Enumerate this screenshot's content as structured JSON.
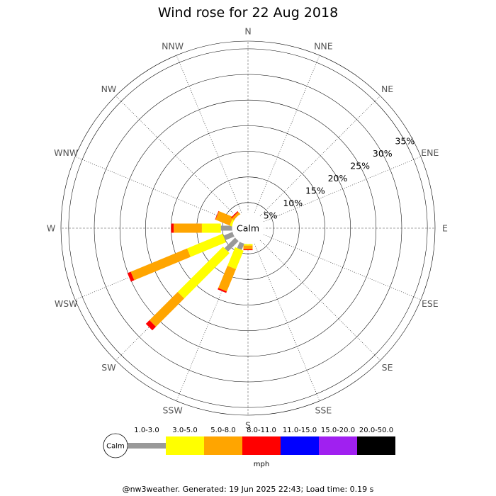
{
  "chart_data": {
    "type": "wind-rose",
    "title": "Wind rose for 22 Aug 2018",
    "directions": [
      "N",
      "NNE",
      "NE",
      "ENE",
      "E",
      "ESE",
      "SE",
      "SSE",
      "S",
      "SSW",
      "SW",
      "WSW",
      "W",
      "WNW",
      "NW",
      "NNW"
    ],
    "radial_axis": {
      "unit": "%",
      "ticks": [
        5,
        10,
        15,
        20,
        25,
        30,
        35
      ],
      "tick_labels": [
        "5%",
        "10%",
        "15%",
        "20%",
        "25%",
        "30%",
        "35%"
      ],
      "max": 36.5,
      "calm_radius_pct": 2.0
    },
    "calm_label": "Calm",
    "speed_bins": [
      {
        "label": "1.0-3.0",
        "color": "#999999"
      },
      {
        "label": "3.0-5.0",
        "color": "#ffff00"
      },
      {
        "label": "5.0-8.0",
        "color": "#ffa500"
      },
      {
        "label": "8.0-11.0",
        "color": "#ff0000"
      },
      {
        "label": "11.0-15.0",
        "color": "#0000ff"
      },
      {
        "label": "15.0-20.0",
        "color": "#a020f0"
      },
      {
        "label": "20.0-50.0",
        "color": "#000000"
      }
    ],
    "speed_unit": "mph",
    "series": [
      {
        "direction": "S",
        "cumulative_pct": [
          3.1,
          3.4,
          4.1,
          4.3
        ]
      },
      {
        "direction": "SSW",
        "cumulative_pct": [
          4.4,
          8.3,
          13.0,
          13.3
        ]
      },
      {
        "direction": "SW",
        "cumulative_pct": [
          6.0,
          18.5,
          26.3,
          27.3
        ]
      },
      {
        "direction": "WSW",
        "cumulative_pct": [
          5.0,
          12.5,
          24.4,
          25.1
        ]
      },
      {
        "direction": "W",
        "cumulative_pct": [
          5.3,
          9.0,
          14.5,
          15.0
        ]
      },
      {
        "direction": "WNW",
        "cumulative_pct": [
          2.2,
          3.5,
          6.5,
          6.6
        ]
      },
      {
        "direction": "NW",
        "cumulative_pct": [
          1.7,
          2.7,
          3.6,
          3.8
        ]
      }
    ]
  },
  "footer": "@nw3weather. Generated: 19 Jun 2025 22:43; Load time: 0.19 s"
}
